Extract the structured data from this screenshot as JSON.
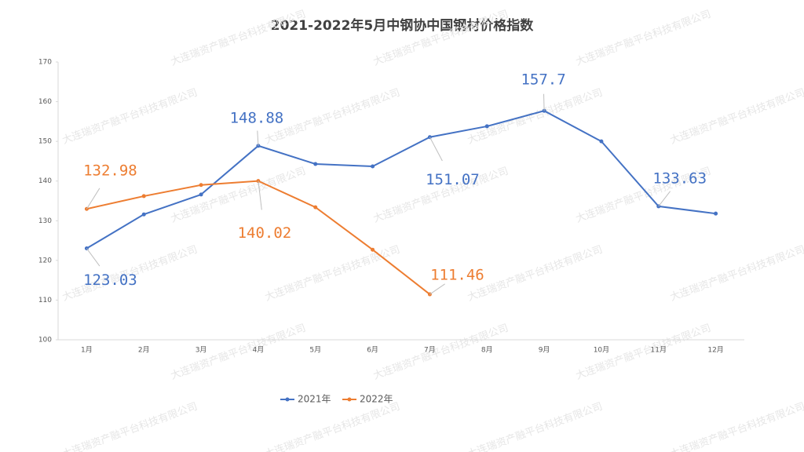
{
  "chart_data": {
    "type": "line",
    "title": "2021-2022年5月中钢协中国钢材价格指数",
    "watermark": "大连瑞资产融平台科技有限公司",
    "categories": [
      "1月",
      "2月",
      "3月",
      "4月",
      "5月",
      "6月",
      "7月",
      "8月",
      "9月",
      "10月",
      "11月",
      "12月"
    ],
    "series": [
      {
        "name": "2021年",
        "color": "#4472c4",
        "values": [
          123.03,
          131.6,
          136.6,
          148.88,
          144.3,
          143.7,
          151.07,
          153.8,
          157.7,
          150.0,
          133.63,
          131.8
        ],
        "value_labels": [
          "123.03",
          null,
          null,
          "148.88",
          null,
          null,
          "151.07",
          null,
          "157.7",
          null,
          "133.63",
          null
        ]
      },
      {
        "name": "2022年",
        "color": "#ed7d31",
        "values": [
          132.98,
          136.2,
          139.0,
          140.02,
          133.4,
          122.7,
          111.46,
          null,
          null,
          null,
          null,
          null
        ],
        "value_labels": [
          "132.98",
          null,
          null,
          "140.02",
          null,
          null,
          "111.46",
          null,
          null,
          null,
          null,
          null
        ]
      }
    ],
    "ylim": [
      100,
      170
    ],
    "yticks": [
      100,
      110,
      120,
      130,
      140,
      150,
      160,
      170
    ]
  }
}
